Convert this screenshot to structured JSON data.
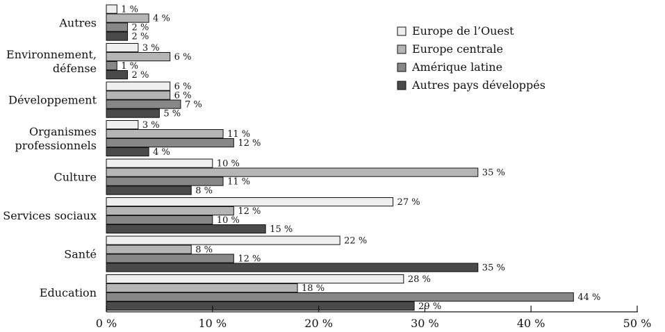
{
  "chart_data": {
    "type": "bar",
    "orientation": "horizontal",
    "title": "",
    "xlabel": "",
    "ylabel": "",
    "xlim": [
      0,
      50
    ],
    "xticks": [
      "0 %",
      "10 %",
      "20 %",
      "30 %",
      "40 %",
      "50 %"
    ],
    "value_suffix": " %",
    "legend_position": "top-right",
    "grid": false,
    "categories": [
      [
        "Autres"
      ],
      [
        "Environnement,",
        "défense"
      ],
      [
        "Développement"
      ],
      [
        "Organismes",
        "professionnels"
      ],
      [
        "Culture"
      ],
      [
        "Services sociaux"
      ],
      [
        "Santé"
      ],
      [
        "Education"
      ]
    ],
    "series": [
      {
        "name": "Europe de l’Ouest",
        "color": "#efefef",
        "values": [
          1,
          3,
          6,
          3,
          10,
          27,
          22,
          28
        ]
      },
      {
        "name": "Europe centrale",
        "color": "#b5b5b5",
        "values": [
          4,
          6,
          6,
          11,
          35,
          12,
          8,
          18
        ]
      },
      {
        "name": "Amérique latine",
        "color": "#878787",
        "values": [
          2,
          1,
          7,
          12,
          11,
          10,
          12,
          44
        ]
      },
      {
        "name": "Autres pays développés",
        "color": "#4a4a4a",
        "values": [
          2,
          2,
          5,
          4,
          8,
          15,
          35,
          29
        ]
      }
    ]
  }
}
